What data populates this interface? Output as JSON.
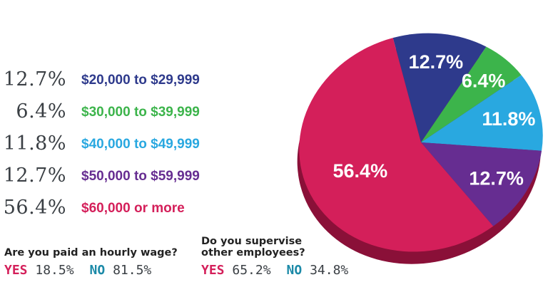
{
  "chart_data": {
    "type": "pie",
    "slices": [
      {
        "label": "$20,000 to $29,999",
        "value": 12.7,
        "display": "12.7%",
        "legend_value": "12.7%",
        "color": "#2e3a8c"
      },
      {
        "label": "$30,000 to $39,999",
        "value": 6.4,
        "display": "6.4%",
        "legend_value": "6.4%",
        "color": "#3cb44b"
      },
      {
        "label": "$40,000 to $49,999",
        "value": 11.8,
        "display": "11.8%",
        "legend_value": "11.8%",
        "color": "#29a8e0"
      },
      {
        "label": "$50,000 to $59,999",
        "value": 12.7,
        "display": "12.7%",
        "legend_value": "12.7%",
        "color": "#662d91"
      },
      {
        "label": "$60,000 or more",
        "value": 56.4,
        "display": "56.4%",
        "legend_value": "56.4%",
        "color": "#d41f5a"
      }
    ],
    "pie_side_color": "#8a1038",
    "legend_placement": "left"
  },
  "questions": [
    {
      "text": "Are you paid an hourly wage?",
      "yes_label": "YES",
      "yes_value": "18.5%",
      "no_label": "NO",
      "no_value": "81.5%"
    },
    {
      "text": "Do you supervise\nother employees?",
      "yes_label": "YES",
      "yes_value": "65.2%",
      "no_label": "NO",
      "no_value": "34.8%"
    }
  ],
  "colors": {
    "yes": "#d41f5a",
    "no": "#1c8aa8",
    "value_text": "#3a3f44"
  }
}
